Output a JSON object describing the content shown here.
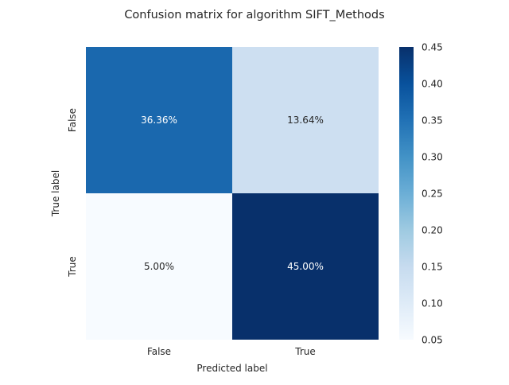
{
  "chart_data": {
    "type": "heatmap",
    "title": "Confusion matrix for algorithm SIFT_Methods",
    "xlabel": "Predicted label",
    "ylabel": "True label",
    "x_categories": [
      "False",
      "True"
    ],
    "y_categories": [
      "False",
      "True"
    ],
    "values": [
      [
        0.3636,
        0.1364
      ],
      [
        0.05,
        0.45
      ]
    ],
    "cell_labels": [
      [
        "36.36%",
        "13.64%"
      ],
      [
        "5.00%",
        "45.00%"
      ]
    ],
    "colormap": "Blues",
    "color_range": [
      0.05,
      0.45
    ],
    "colorbar_ticks": [
      "0.05",
      "0.10",
      "0.15",
      "0.20",
      "0.25",
      "0.30",
      "0.35",
      "0.40",
      "0.45"
    ],
    "colorbar_tick_values": [
      0.05,
      0.1,
      0.15,
      0.2,
      0.25,
      0.3,
      0.35,
      0.4,
      0.45
    ],
    "legend": "colorbar-right",
    "grid": false
  }
}
